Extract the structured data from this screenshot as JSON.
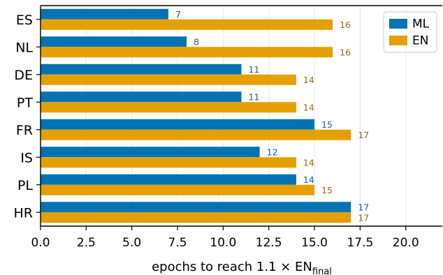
{
  "chart_data": {
    "type": "bar",
    "orientation": "horizontal",
    "categories": [
      "ES",
      "NL",
      "DE",
      "PT",
      "FR",
      "IS",
      "PL",
      "HR"
    ],
    "series": [
      {
        "name": "ML",
        "values": [
          7,
          8,
          11,
          11,
          15,
          12,
          14,
          17
        ],
        "color": "#0173b2",
        "label_color": "#1c5e96"
      },
      {
        "name": "EN",
        "values": [
          16,
          16,
          14,
          14,
          17,
          14,
          15,
          17
        ],
        "color": "#e5a000",
        "label_color": "#9a6a10"
      }
    ],
    "xlabel_main": "epochs to reach 1.1 × EN",
    "xlabel_sub": "final",
    "xlim": [
      0,
      22
    ],
    "xticks": [
      "0.0",
      "2.5",
      "5.0",
      "7.5",
      "10.0",
      "12.5",
      "15.0",
      "17.5",
      "20.0"
    ],
    "grid": "vertical",
    "legend_position": "top-right"
  }
}
